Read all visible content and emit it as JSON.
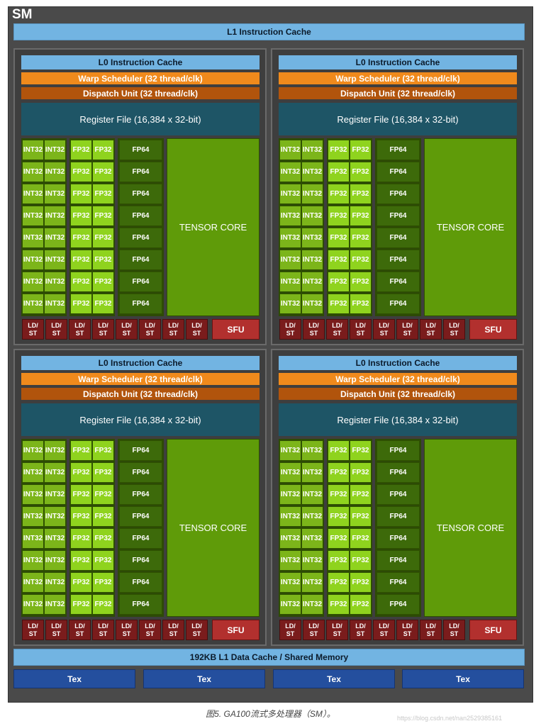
{
  "sm": {
    "label": "SM",
    "l1_instruction_cache": "L1 Instruction Cache",
    "processing_block": {
      "l0_instruction_cache": "L0 Instruction Cache",
      "warp_scheduler": "Warp Scheduler (32 thread/clk)",
      "dispatch_unit": "Dispatch Unit (32 thread/clk)",
      "register_file": "Register File (16,384 x 32-bit)",
      "int32": "INT32",
      "fp32": "FP32",
      "fp64": "FP64",
      "tensor_core": "TENSOR CORE",
      "ldst_line1": "LD/",
      "ldst_line2": "ST",
      "sfu": "SFU"
    },
    "l1_data_cache": "192KB L1 Data Cache / Shared Memory",
    "tex": [
      "Tex",
      "Tex",
      "Tex",
      "Tex"
    ]
  },
  "caption": "图5. GA100流式多处理器（SM）。",
  "watermark": "https://blog.csdn.net/nan2529385161",
  "colors": {
    "instruction_cache": "#72b4e2",
    "warp_scheduler": "#f08a1c",
    "dispatch_unit": "#b1540c",
    "register_file": "#1e5566",
    "int32": "#7cb51a",
    "fp32": "#8fd31e",
    "fp64": "#3d6a0a",
    "tensor_core": "#5f9b09",
    "ldst": "#7a1c1c",
    "sfu": "#b2302e",
    "tex": "#244f9e"
  }
}
